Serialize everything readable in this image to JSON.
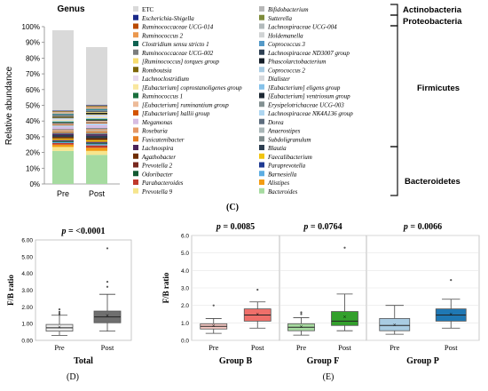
{
  "panel_c": {
    "title": "Genus",
    "ylabel": "Relative abundance",
    "yticks": [
      "0%",
      "10%",
      "20%",
      "30%",
      "40%",
      "50%",
      "60%",
      "70%",
      "80%",
      "90%",
      "100%"
    ],
    "label": "(C)",
    "phyla": [
      "Actinobacteria",
      "Proteobacteria",
      "Firmicutes",
      "Bacteroidetes"
    ]
  },
  "panel_d": {
    "label": "(D)"
  },
  "panel_e": {
    "label": "(E)"
  },
  "chart_data": [
    {
      "type": "bar",
      "stacked": true,
      "title": "Genus",
      "ylabel": "Relative abundance",
      "ylim": [
        0,
        100
      ],
      "categories": [
        "Pre",
        "Post"
      ],
      "series": [
        {
          "name": "Bacteroides",
          "color": "#a6dba0",
          "values": [
            21.0,
            18.5
          ]
        },
        {
          "name": "Prevotella 9",
          "color": "#f6e58d",
          "values": [
            2.5,
            2.5
          ]
        },
        {
          "name": "Alistipes",
          "color": "#f39c12",
          "values": [
            1.5,
            2.0
          ]
        },
        {
          "name": "Parabacteroides",
          "color": "#c0392b",
          "values": [
            1.0,
            1.5
          ]
        },
        {
          "name": "Barnesiella",
          "color": "#5dade2",
          "values": [
            0.6,
            0.8
          ]
        },
        {
          "name": "Odoribacter",
          "color": "#145a32",
          "values": [
            0.6,
            0.6
          ]
        },
        {
          "name": "Paraprevotella",
          "color": "#1f3a93",
          "values": [
            0.4,
            0.5
          ]
        },
        {
          "name": "Prevotella 2",
          "color": "#78281f",
          "values": [
            0.5,
            0.5
          ]
        },
        {
          "name": "Faecalibacterium",
          "color": "#f1c40f",
          "values": [
            0.8,
            1.0
          ]
        },
        {
          "name": "Agathobacter",
          "color": "#6e2c00",
          "values": [
            1.0,
            1.2
          ]
        },
        {
          "name": "Blautia",
          "color": "#2c3e50",
          "values": [
            1.2,
            1.5
          ]
        },
        {
          "name": "Lachnospira",
          "color": "#4a235a",
          "values": [
            0.8,
            1.0
          ]
        },
        {
          "name": "Subdoligranulum",
          "color": "#7f8c8d",
          "values": [
            0.8,
            1.0
          ]
        },
        {
          "name": "Fusicatenibacter",
          "color": "#e67e22",
          "values": [
            0.7,
            0.9
          ]
        },
        {
          "name": "Anaerostipes",
          "color": "#aab7b8",
          "values": [
            0.5,
            0.6
          ]
        },
        {
          "name": "Roseburia",
          "color": "#e59866",
          "values": [
            0.6,
            0.8
          ]
        },
        {
          "name": "Dorea",
          "color": "#5d6d7e",
          "values": [
            0.4,
            0.6
          ]
        },
        {
          "name": "Megamonas",
          "color": "#d7bde2",
          "values": [
            1.5,
            2.0
          ]
        },
        {
          "name": "Lachnospiraceae NK4A136 group",
          "color": "#aed6f1",
          "values": [
            0.8,
            1.0
          ]
        },
        {
          "name": "[Eubacterium] hallii group",
          "color": "#d35400",
          "values": [
            0.5,
            0.6
          ]
        },
        {
          "name": "Erysipelotrichaceae UCG-003",
          "color": "#839192",
          "values": [
            0.4,
            0.5
          ]
        },
        {
          "name": "[Eubacterium] ruminantium group",
          "color": "#edbb99",
          "values": [
            0.5,
            0.6
          ]
        },
        {
          "name": "[Eubacterium] ventriosum group",
          "color": "#1c2833",
          "values": [
            0.4,
            0.5
          ]
        },
        {
          "name": "Ruminococcus 1",
          "color": "#196f3d",
          "values": [
            0.5,
            0.6
          ]
        },
        {
          "name": "[Eubacterium] eligens group",
          "color": "#85c1e9",
          "values": [
            0.5,
            0.6
          ]
        },
        {
          "name": "[Eubacterium] coprostanoligenes group",
          "color": "#f9e79f",
          "values": [
            0.5,
            0.6
          ]
        },
        {
          "name": "Dialister",
          "color": "#d5d8dc",
          "values": [
            0.5,
            0.6
          ]
        },
        {
          "name": "Lachnoclostridium",
          "color": "#e8daef",
          "values": [
            0.4,
            0.5
          ]
        },
        {
          "name": "Coprococcus 2",
          "color": "#a9cce3",
          "values": [
            0.4,
            0.5
          ]
        },
        {
          "name": "Romboutsia",
          "color": "#7d6608",
          "values": [
            0.4,
            0.5
          ]
        },
        {
          "name": "Phascolarctobacterium",
          "color": "#17202a",
          "values": [
            0.5,
            0.6
          ]
        },
        {
          "name": "[Ruminococcus] torques group",
          "color": "#f7dc6f",
          "values": [
            0.4,
            0.5
          ]
        },
        {
          "name": "Lachnospiraceae ND3007 group",
          "color": "#2e4053",
          "values": [
            0.4,
            0.5
          ]
        },
        {
          "name": "Ruminococcaceae UCG-002",
          "color": "#7b7d7d",
          "values": [
            0.4,
            0.5
          ]
        },
        {
          "name": "Coprococcus 3",
          "color": "#5499c7",
          "values": [
            0.4,
            0.5
          ]
        },
        {
          "name": "Clostridium sensu stricto 1",
          "color": "#0e6251",
          "values": [
            0.4,
            0.5
          ]
        },
        {
          "name": "Holdemanella",
          "color": "#d0d3d4",
          "values": [
            0.3,
            0.4
          ]
        },
        {
          "name": "Ruminococcus 2",
          "color": "#eb984e",
          "values": [
            0.4,
            0.5
          ]
        },
        {
          "name": "Lachnospiraceae UCG-004",
          "color": "#b2babb",
          "values": [
            0.3,
            0.4
          ]
        },
        {
          "name": "Ruminococcaceae UCG-014",
          "color": "#ba4a00",
          "values": [
            0.3,
            0.4
          ]
        },
        {
          "name": "Sutterella",
          "color": "#7e8c3b",
          "values": [
            0.3,
            0.4
          ]
        },
        {
          "name": "Escherichia-Shigella",
          "color": "#1b2a8a",
          "values": [
            0.3,
            0.4
          ]
        },
        {
          "name": "Bifidobacterium",
          "color": "#b7b7b7",
          "values": [
            0.2,
            0.3
          ]
        },
        {
          "name": "ETC",
          "color": "#d9d9d9",
          "values": [
            50.9,
            36.5
          ]
        }
      ]
    },
    {
      "type": "box",
      "title": "p = <0.0001",
      "xlabel": "Total",
      "ylabel": "F/B ratio",
      "ylim": [
        0,
        6
      ],
      "yticks": [
        "0.00",
        "1.00",
        "2.00",
        "3.00",
        "4.00",
        "5.00",
        "6.00"
      ],
      "categories": [
        "Pre",
        "Post"
      ],
      "boxes": [
        {
          "name": "Pre",
          "color": "#ececec",
          "min": 0.3,
          "q1": 0.55,
          "median": 0.75,
          "q3": 0.95,
          "max": 1.5,
          "mean": 0.8,
          "outliers": [
            1.85,
            1.6,
            1.55,
            1.7
          ]
        },
        {
          "name": "Post",
          "color": "#6f6f6f",
          "min": 0.55,
          "q1": 1.05,
          "median": 1.4,
          "q3": 1.75,
          "max": 2.75,
          "mean": 1.5,
          "outliers": [
            5.5,
            3.5,
            3.2
          ]
        }
      ]
    },
    {
      "type": "box",
      "title": "p = 0.0085",
      "xlabel": "Group B",
      "ylabel": "F/B ratio",
      "ylim": [
        0,
        6
      ],
      "yticks": [
        "0.0",
        "1.0",
        "2.0",
        "3.0",
        "4.0",
        "5.0",
        "6.0"
      ],
      "categories": [
        "Pre",
        "Post"
      ],
      "boxes": [
        {
          "name": "Pre",
          "color": "#f8c9c4",
          "min": 0.4,
          "q1": 0.65,
          "median": 0.8,
          "q3": 0.95,
          "max": 1.25,
          "mean": 0.85,
          "outliers": [
            2.0
          ]
        },
        {
          "name": "Post",
          "color": "#ef6f6a",
          "min": 0.7,
          "q1": 1.1,
          "median": 1.45,
          "q3": 1.8,
          "max": 2.2,
          "mean": 1.5,
          "outliers": [
            2.9
          ]
        }
      ]
    },
    {
      "type": "box",
      "title": "p = 0.0764",
      "xlabel": "Group F",
      "ylabel": "F/B ratio",
      "ylim": [
        0,
        6
      ],
      "yticks": [
        "0.0",
        "1.0",
        "2.0",
        "3.0",
        "4.0",
        "5.0",
        "6.0"
      ],
      "categories": [
        "Pre",
        "Post"
      ],
      "boxes": [
        {
          "name": "Pre",
          "color": "#a7dba0",
          "min": 0.3,
          "q1": 0.55,
          "median": 0.75,
          "q3": 0.95,
          "max": 1.3,
          "mean": 0.8,
          "outliers": [
            1.6,
            1.5
          ]
        },
        {
          "name": "Post",
          "color": "#33a02c",
          "min": 0.55,
          "q1": 0.85,
          "median": 1.1,
          "q3": 1.65,
          "max": 2.65,
          "mean": 1.35,
          "outliers": [
            5.3
          ]
        }
      ]
    },
    {
      "type": "box",
      "title": "p = 0.0066",
      "xlabel": "Group P",
      "ylabel": "F/B ratio",
      "ylim": [
        0,
        6
      ],
      "yticks": [
        "0.0",
        "1.0",
        "2.0",
        "3.0",
        "4.0",
        "5.0",
        "6.0"
      ],
      "categories": [
        "Pre",
        "Post"
      ],
      "boxes": [
        {
          "name": "Pre",
          "color": "#a9cce3",
          "min": 0.35,
          "q1": 0.55,
          "median": 0.85,
          "q3": 1.25,
          "max": 2.0,
          "mean": 0.9,
          "outliers": []
        },
        {
          "name": "Post",
          "color": "#1f78b4",
          "min": 0.7,
          "q1": 1.1,
          "median": 1.45,
          "q3": 1.8,
          "max": 2.35,
          "mean": 1.5,
          "outliers": [
            3.45
          ]
        }
      ]
    }
  ]
}
